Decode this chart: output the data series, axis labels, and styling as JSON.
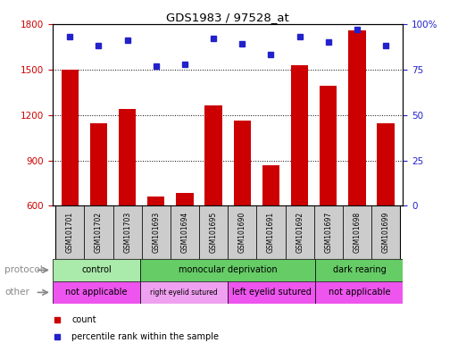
{
  "title": "GDS1983 / 97528_at",
  "samples": [
    "GSM101701",
    "GSM101702",
    "GSM101703",
    "GSM101693",
    "GSM101694",
    "GSM101695",
    "GSM101690",
    "GSM101691",
    "GSM101692",
    "GSM101697",
    "GSM101698",
    "GSM101699"
  ],
  "counts": [
    1500,
    1145,
    1240,
    660,
    685,
    1265,
    1160,
    870,
    1530,
    1390,
    1760,
    1145
  ],
  "percentile_ranks": [
    93,
    88,
    91,
    77,
    78,
    92,
    89,
    83,
    93,
    90,
    97,
    88
  ],
  "ylim_left": [
    600,
    1800
  ],
  "yticks_left": [
    600,
    900,
    1200,
    1500,
    1800
  ],
  "yticks_right": [
    0,
    25,
    50,
    75,
    100
  ],
  "protocol_groups": [
    {
      "label": "control",
      "start": 0,
      "end": 3,
      "color": "#aaeaaa"
    },
    {
      "label": "monocular deprivation",
      "start": 3,
      "end": 9,
      "color": "#66cc66"
    },
    {
      "label": "dark rearing",
      "start": 9,
      "end": 12,
      "color": "#66cc66"
    }
  ],
  "other_groups": [
    {
      "label": "not applicable",
      "start": 0,
      "end": 3,
      "color": "#ee55ee"
    },
    {
      "label": "right eyelid sutured",
      "start": 3,
      "end": 6,
      "color": "#f0a0f0"
    },
    {
      "label": "left eyelid sutured",
      "start": 6,
      "end": 9,
      "color": "#ee55ee"
    },
    {
      "label": "not applicable",
      "start": 9,
      "end": 12,
      "color": "#ee55ee"
    }
  ],
  "bar_color": "#cc0000",
  "dot_color": "#2222cc",
  "label_color_left": "#cc0000",
  "label_color_right": "#2222cc",
  "bg_color": "#ffffff",
  "protocol_label": "protocol",
  "other_label": "other",
  "legend_count": "count",
  "legend_pct": "percentile rank within the sample",
  "sample_box_color": "#cccccc"
}
